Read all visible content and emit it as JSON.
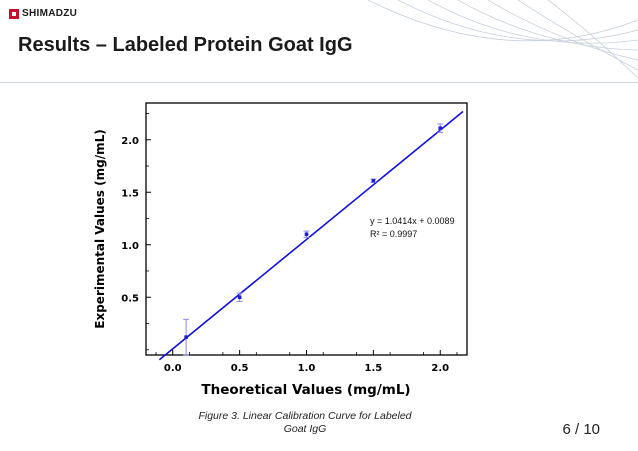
{
  "brand": {
    "logo_text": "SHIMADZU",
    "logo_color": "#c8102e"
  },
  "slide": {
    "title": "Results – Labeled Protein Goat IgG",
    "caption_line1": "Figure 3. Linear Calibration Curve for Labeled",
    "caption_line2": "Goat IgG",
    "page_current": "6",
    "page_sep": "/",
    "page_total": "10"
  },
  "chart_data": {
    "type": "scatter",
    "xlabel": "Theoretical Values (mg/mL)",
    "ylabel": "Experimental Values (mg/mL)",
    "xlim": [
      -0.2,
      2.2
    ],
    "ylim": [
      -0.05,
      2.35
    ],
    "xticks": [
      0.0,
      0.5,
      1.0,
      1.5,
      2.0
    ],
    "xtick_labels": [
      "0.0",
      "0.5",
      "1.0",
      "1.5",
      "2.0"
    ],
    "yticks": [
      0.5,
      1.0,
      1.5,
      2.0
    ],
    "ytick_labels": [
      "0.5",
      "1.0",
      "1.5",
      "2.0"
    ],
    "grid": false,
    "series": [
      {
        "points": [
          {
            "x": 0.1,
            "y": 0.12,
            "err": 0.17
          },
          {
            "x": 0.5,
            "y": 0.5,
            "err": 0.04
          },
          {
            "x": 1.0,
            "y": 1.1,
            "err": 0.03
          },
          {
            "x": 1.5,
            "y": 1.61,
            "err": 0.015
          },
          {
            "x": 2.0,
            "y": 2.11,
            "err": 0.04
          }
        ],
        "marker_color": "#1f1fd0"
      }
    ],
    "fit": {
      "slope": 1.0414,
      "intercept": 0.0089,
      "x_range": [
        -0.1,
        2.17
      ],
      "equation": "y = 1.0414x + 0.0089",
      "r2": "R² = 0.9997",
      "line_color": "#1010e0"
    }
  }
}
